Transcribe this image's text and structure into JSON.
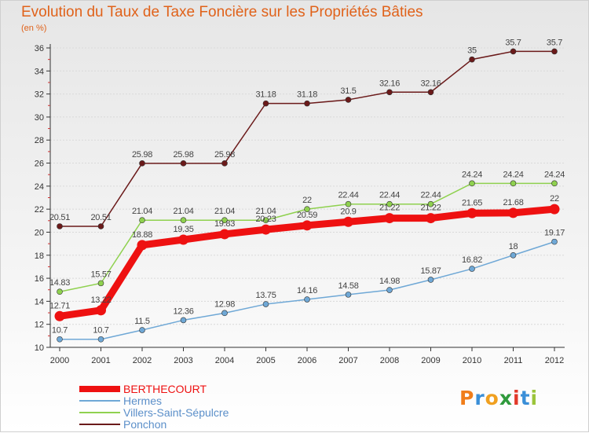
{
  "chart_data": {
    "type": "line",
    "title": "Evolution du Taux de Taxe Foncière sur les Propriétés Bâties",
    "ylabel": "(en %)",
    "xlabel": "",
    "x": [
      "2000",
      "2001",
      "2002",
      "2003",
      "2004",
      "2005",
      "2006",
      "2007",
      "2008",
      "2009",
      "2010",
      "2011",
      "2012"
    ],
    "ylim": [
      10,
      36
    ],
    "yticks": [
      10,
      12,
      14,
      16,
      18,
      20,
      22,
      24,
      26,
      28,
      30,
      32,
      34,
      36
    ],
    "series": [
      {
        "name": "Ponchon",
        "color": "#6b1a1a",
        "values": [
          20.51,
          20.51,
          25.98,
          25.98,
          25.98,
          31.18,
          31.18,
          31.5,
          32.16,
          32.16,
          35,
          35.7,
          35.7
        ],
        "labels": [
          "20.51",
          "20.51",
          "25.98",
          "25.98",
          "25.98",
          "31.18",
          "31.18",
          "31.5",
          "32.16",
          "32.16",
          "35",
          "35.7",
          "35.7"
        ]
      },
      {
        "name": "Villers-Saint-Sépulcre",
        "color": "#8fd14f",
        "values": [
          14.83,
          15.57,
          21.04,
          21.04,
          21.04,
          21.04,
          22,
          22.44,
          22.44,
          22.44,
          24.24,
          24.24,
          24.24
        ],
        "labels": [
          "14.83",
          "15.57",
          "21.04",
          "21.04",
          "21.04",
          "21.04",
          "22",
          "22.44",
          "22.44",
          "22.44",
          "24.24",
          "24.24",
          "24.24"
        ]
      },
      {
        "name": "Hermes",
        "color": "#6fa8d6",
        "values": [
          10.7,
          10.7,
          11.5,
          12.36,
          12.98,
          13.75,
          14.16,
          14.58,
          14.98,
          15.87,
          16.82,
          18,
          19.17
        ],
        "labels": [
          "10.7",
          "10.7",
          "11.5",
          "12.36",
          "12.98",
          "13.75",
          "14.16",
          "14.58",
          "14.98",
          "15.87",
          "16.82",
          "18",
          "19.17"
        ]
      },
      {
        "name": "BERTHECOURT",
        "color": "#ee1111",
        "values": [
          12.71,
          13.22,
          18.88,
          19.35,
          19.83,
          20.23,
          20.59,
          20.9,
          21.22,
          21.22,
          21.65,
          21.68,
          22
        ],
        "labels": [
          "12.71",
          "13.22",
          "18.88",
          "19.35",
          "19.83",
          "20.23",
          "20.59",
          "20.9",
          "21.22",
          "21.22",
          "21.65",
          "21.68",
          "22"
        ]
      }
    ],
    "legend": [
      "BERTHECOURT",
      "Hermes",
      "Villers-Saint-Sépulcre",
      "Ponchon"
    ]
  },
  "logo": {
    "letters": [
      "P",
      "r",
      "o",
      "x",
      "i",
      "t",
      "i"
    ],
    "colors": [
      "#f07d1a",
      "#3a8fd8",
      "#f0a020",
      "#2f9a3c",
      "#e23a2a",
      "#3a8fd8",
      "#9bc43a"
    ]
  }
}
